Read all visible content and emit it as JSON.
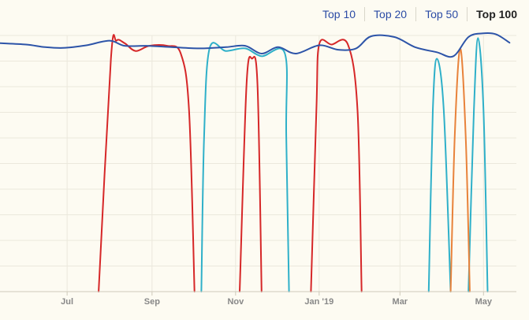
{
  "tabs": {
    "items": [
      {
        "label": "Top 10",
        "active": false
      },
      {
        "label": "Top 20",
        "active": false
      },
      {
        "label": "Top 50",
        "active": false
      },
      {
        "label": "Top 100",
        "active": true
      }
    ]
  },
  "chart_data": {
    "type": "line",
    "title": "",
    "xlabel": "",
    "ylabel": "",
    "x_ticks": [
      "Jul",
      "Sep",
      "Nov",
      "Jan '19",
      "Mar",
      "May"
    ],
    "x_tick_dates": [
      "2018-07-01",
      "2018-09-01",
      "2018-11-01",
      "2019-01-01",
      "2019-03-01",
      "2019-05-01"
    ],
    "x_range": [
      "2018-05-13",
      "2019-05-25"
    ],
    "y_range": [
      100,
      1
    ],
    "y_reversed": true,
    "y_tick_labels_shown": false,
    "grid": true,
    "legend": "none",
    "series": [
      {
        "color": "#2d54a8",
        "points": [
          [
            "2018-05-13",
            4
          ],
          [
            "2018-06-01",
            4.5
          ],
          [
            "2018-06-15",
            5.5
          ],
          [
            "2018-06-28",
            5.8
          ],
          [
            "2018-07-15",
            4.8
          ],
          [
            "2018-08-01",
            3
          ],
          [
            "2018-08-12",
            5
          ],
          [
            "2018-08-28",
            5
          ],
          [
            "2018-09-15",
            5.5
          ],
          [
            "2018-10-05",
            6
          ],
          [
            "2018-10-25",
            5.5
          ],
          [
            "2018-11-08",
            5
          ],
          [
            "2018-11-20",
            8
          ],
          [
            "2018-12-02",
            5.5
          ],
          [
            "2018-12-15",
            8
          ],
          [
            "2019-01-01",
            4.8
          ],
          [
            "2019-01-15",
            6.5
          ],
          [
            "2019-01-28",
            6
          ],
          [
            "2019-02-08",
            1.3
          ],
          [
            "2019-02-25",
            1.6
          ],
          [
            "2019-03-12",
            5.5
          ],
          [
            "2019-03-28",
            7.5
          ],
          [
            "2019-04-09",
            9
          ],
          [
            "2019-04-20",
            1.6
          ],
          [
            "2019-04-30",
            0.2
          ],
          [
            "2019-05-10",
            0.5
          ],
          [
            "2019-05-20",
            3.8
          ]
        ]
      },
      {
        "color": "#d62728",
        "segments": [
          [
            [
              "2018-07-24",
              100
            ],
            [
              "2018-08-02",
              10
            ],
            [
              "2018-08-06",
              3
            ],
            [
              "2018-08-12",
              4
            ],
            [
              "2018-08-20",
              7
            ],
            [
              "2018-08-30",
              5
            ],
            [
              "2018-09-12",
              5
            ],
            [
              "2018-09-22",
              8
            ],
            [
              "2018-09-28",
              30
            ],
            [
              "2018-10-02",
              100
            ]
          ],
          [
            [
              "2018-11-04",
              100
            ],
            [
              "2018-11-09",
              20
            ],
            [
              "2018-11-13",
              10
            ],
            [
              "2018-11-17",
              20
            ],
            [
              "2018-11-20",
              100
            ]
          ],
          [
            [
              "2018-12-26",
              100
            ],
            [
              "2018-12-30",
              30
            ],
            [
              "2019-01-01",
              4.5
            ],
            [
              "2019-01-10",
              4.5
            ],
            [
              "2019-01-22",
              4.5
            ],
            [
              "2019-01-29",
              30
            ],
            [
              "2019-02-01",
              100
            ]
          ]
        ]
      },
      {
        "color": "#2fb0c9",
        "segments": [
          [
            [
              "2018-10-07",
              100
            ],
            [
              "2018-10-09",
              40
            ],
            [
              "2018-10-13",
              6
            ],
            [
              "2018-10-25",
              7
            ],
            [
              "2018-11-08",
              6
            ],
            [
              "2018-11-20",
              9
            ],
            [
              "2018-12-07",
              8
            ],
            [
              "2018-12-08",
              40
            ],
            [
              "2018-12-10",
              100
            ]
          ],
          [
            [
              "2019-03-22",
              100
            ],
            [
              "2019-03-25",
              30
            ],
            [
              "2019-03-28",
              10
            ],
            [
              "2019-04-02",
              30
            ],
            [
              "2019-04-07",
              100
            ]
          ],
          [
            [
              "2019-04-20",
              100
            ],
            [
              "2019-04-24",
              30
            ],
            [
              "2019-04-27",
              2
            ],
            [
              "2019-05-01",
              30
            ],
            [
              "2019-05-04",
              100
            ]
          ]
        ]
      },
      {
        "color": "#e8823a",
        "segments": [
          [
            [
              "2019-04-07",
              100
            ],
            [
              "2019-04-10",
              40
            ],
            [
              "2019-04-14",
              6
            ],
            [
              "2019-04-18",
              40
            ],
            [
              "2019-04-21",
              100
            ]
          ]
        ]
      }
    ]
  }
}
